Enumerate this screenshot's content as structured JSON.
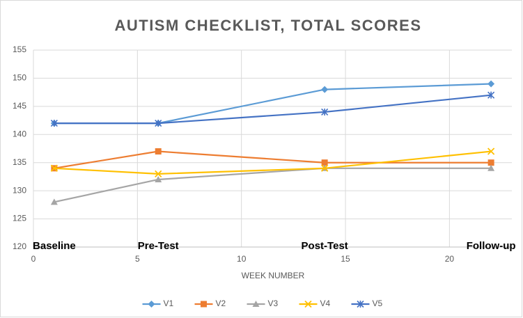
{
  "chart_data": {
    "type": "line",
    "title": "AUTISM CHECKLIST, TOTAL SCORES",
    "x_label": "WEEK NUMBER",
    "x": [
      1,
      6,
      14,
      22
    ],
    "series": [
      {
        "name": "V1",
        "color": "#5b9bd5",
        "marker": "diamond",
        "values": [
          142,
          142,
          148,
          149
        ]
      },
      {
        "name": "V2",
        "color": "#ed7d31",
        "marker": "square",
        "values": [
          134,
          137,
          135,
          135
        ]
      },
      {
        "name": "V3",
        "color": "#a5a5a5",
        "marker": "triangle",
        "values": [
          128,
          132,
          134,
          134
        ]
      },
      {
        "name": "V4",
        "color": "#ffc000",
        "marker": "x",
        "values": [
          134,
          133,
          134,
          137
        ]
      },
      {
        "name": "V5",
        "color": "#4472c4",
        "marker": "star",
        "values": [
          142,
          142,
          144,
          147
        ]
      }
    ],
    "annotations": [
      {
        "text": "Baseline",
        "x": 1
      },
      {
        "text": "Pre-Test",
        "x": 6
      },
      {
        "text": "Post-Test",
        "x": 14
      },
      {
        "text": "Follow-up",
        "x": 22
      }
    ],
    "xlim": [
      0,
      23
    ],
    "xticks": [
      0,
      5,
      10,
      15,
      20
    ],
    "ylim": [
      120,
      155
    ],
    "yticks": [
      120,
      125,
      130,
      135,
      140,
      145,
      150,
      155
    ],
    "grid": true,
    "legend": "bottom"
  }
}
